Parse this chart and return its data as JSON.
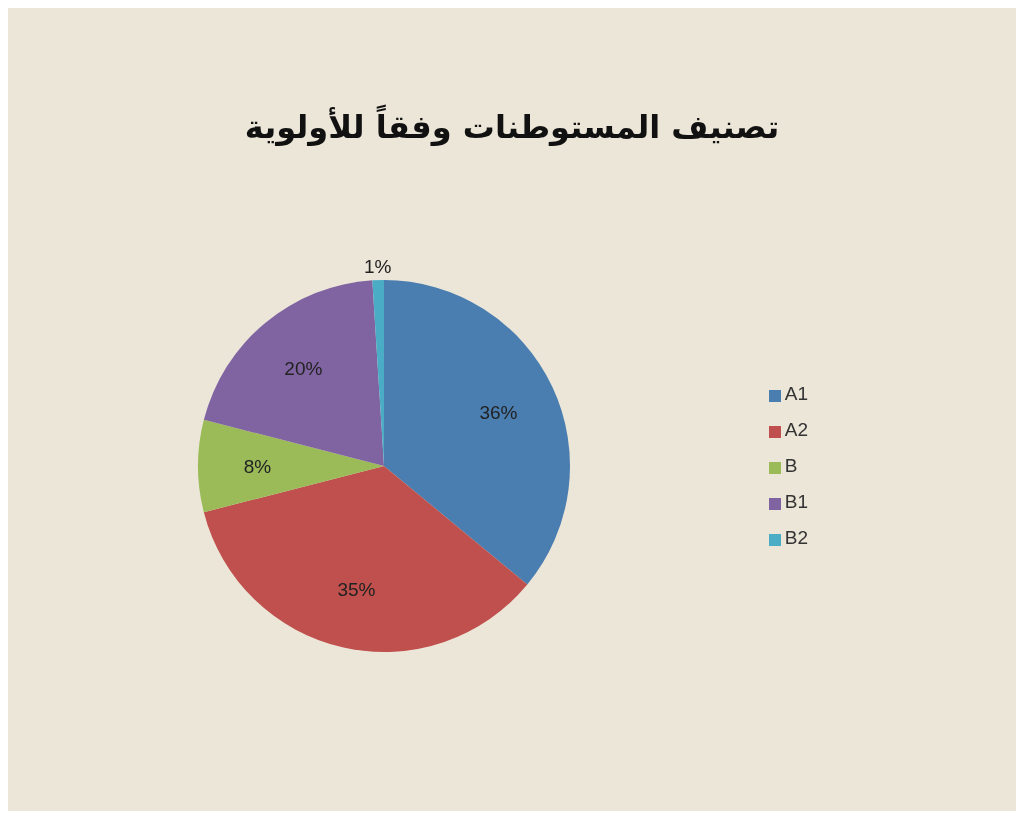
{
  "chart_data": {
    "type": "pie",
    "title": "تصنيف المستوطنات وفقاً للأولوية",
    "categories": [
      "A1",
      "A2",
      "B",
      "B1",
      "B2"
    ],
    "values": [
      36,
      35,
      8,
      20,
      1
    ],
    "colors": [
      "#4a7eb0",
      "#c0504d",
      "#9bbb59",
      "#8064a2",
      "#4bacc6"
    ],
    "value_labels": [
      "36%",
      "35%",
      "8%",
      "20%",
      "1%"
    ],
    "legend": "right"
  }
}
